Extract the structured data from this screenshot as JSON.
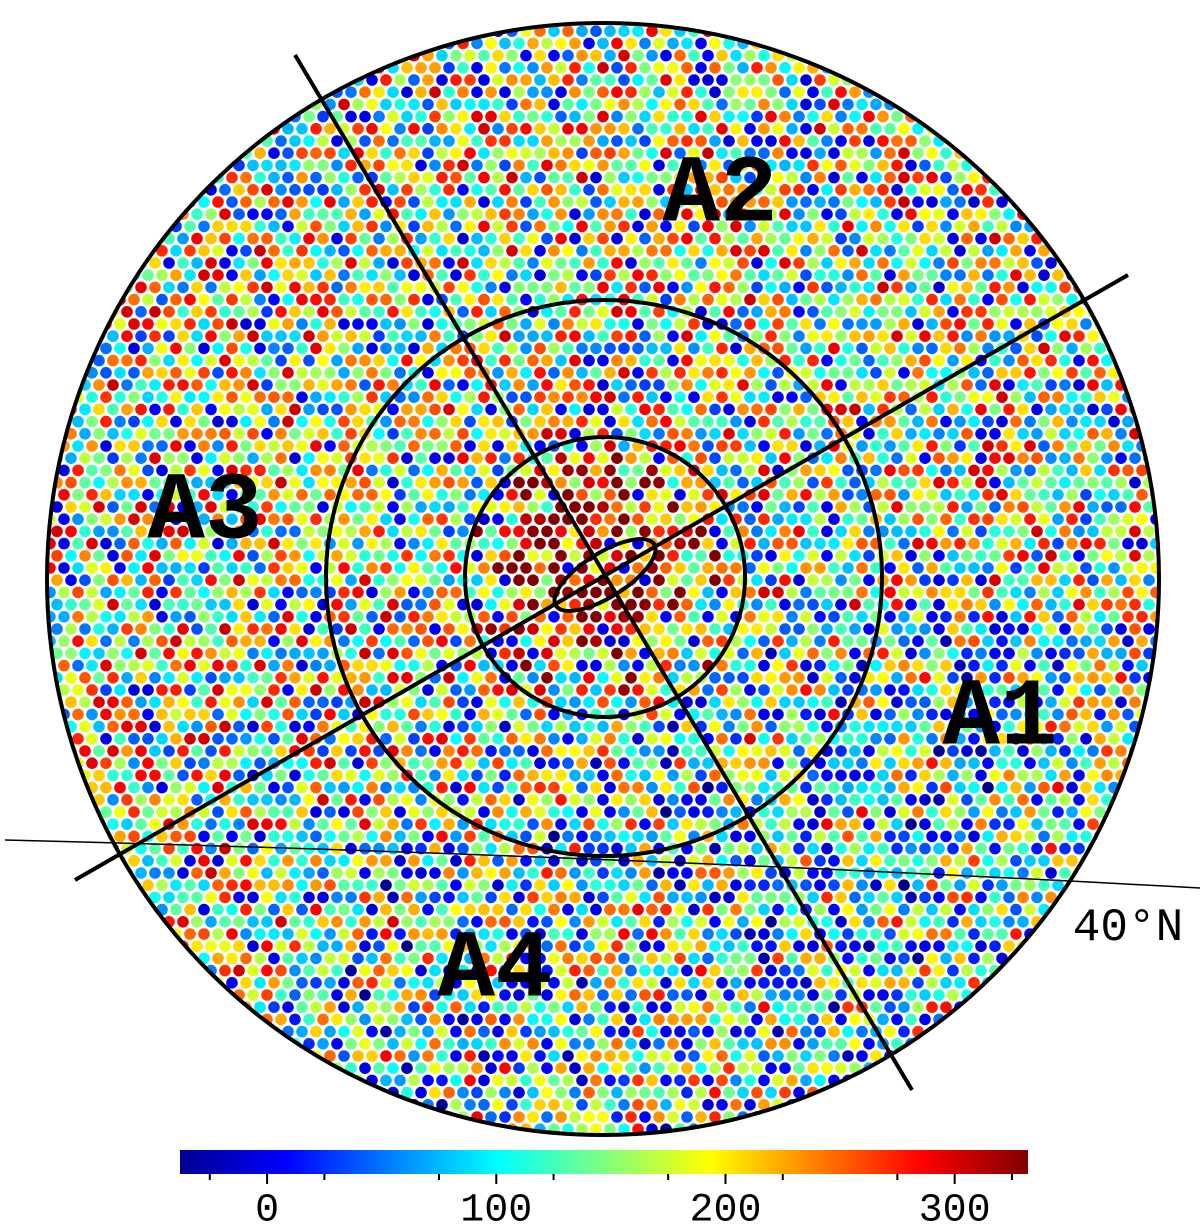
{
  "regions": [
    "A1",
    "A2",
    "A3",
    "A4"
  ],
  "latitude_label": "40°N",
  "colorbar": {
    "colormap": "jet",
    "lim": [
      -38,
      332
    ],
    "ticks": [
      0,
      100,
      200,
      300
    ],
    "minor_ticks": [
      -25,
      25,
      75,
      125,
      175,
      225,
      275,
      325
    ]
  }
}
